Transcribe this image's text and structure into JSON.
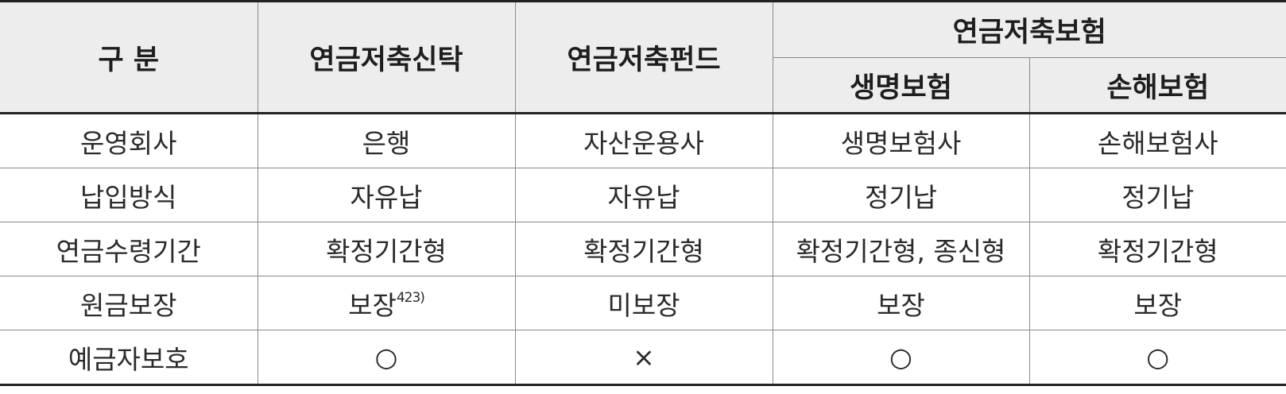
{
  "header": {
    "col_category": "구 분",
    "col_trust": "연금저축신탁",
    "col_fund": "연금저축펀드",
    "col_insurance": "연금저축보험",
    "col_life": "생명보험",
    "col_nonlife": "손해보험"
  },
  "rows": [
    {
      "label": "운영회사",
      "trust": "은행",
      "fund": "자산운용사",
      "life": "생명보험사",
      "nonlife": "손해보험사"
    },
    {
      "label": "납입방식",
      "trust": "자유납",
      "fund": "자유납",
      "life": "정기납",
      "nonlife": "정기납"
    },
    {
      "label": "연금수령기간",
      "trust": "확정기간형",
      "fund": "확정기간형",
      "life": "확정기간형, 종신형",
      "nonlife": "확정기간형"
    },
    {
      "label": "원금보장",
      "trust": "보장",
      "trust_note": "423)",
      "fund": "미보장",
      "life": "보장",
      "nonlife": "보장"
    },
    {
      "label": "예금자보호",
      "trust": "○",
      "fund": "×",
      "life": "○",
      "nonlife": "○"
    }
  ]
}
